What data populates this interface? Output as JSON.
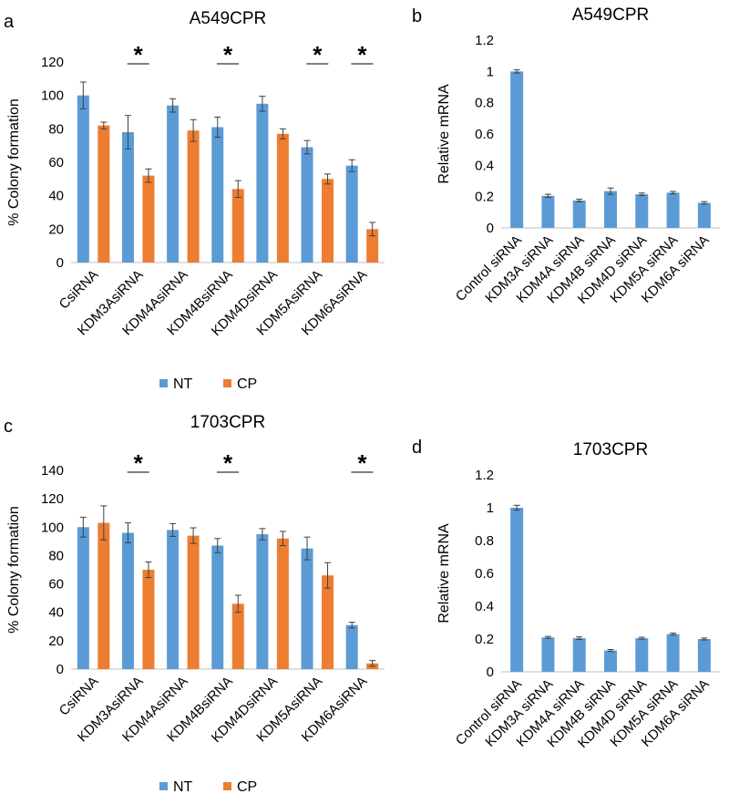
{
  "colors": {
    "nt": "#5B9BD5",
    "cp": "#ED7D31",
    "axis": "#bfbfbf",
    "err": "#404040"
  },
  "significance_marker": "*",
  "chart_data": [
    {
      "panel": "a",
      "type": "bar",
      "title": "A549CPR",
      "ylabel": "% Colony formation",
      "xlabel": "",
      "ylim": [
        0,
        120
      ],
      "ytick_step": 20,
      "legend_position": "bottom",
      "categories": [
        "CsiRNA",
        "KDM3AsiRNA",
        "KDM4AsiRNA",
        "KDM4BsiRNA",
        "KDM4DsiRNA",
        "KDM5AsiRNA",
        "KDM6AsiRNA"
      ],
      "series": [
        {
          "name": "NT",
          "color": "#5B9BD5",
          "values": [
            100,
            78,
            94,
            81,
            95,
            69,
            58
          ],
          "errors": [
            8,
            10,
            4,
            6,
            4.5,
            4,
            3.5
          ]
        },
        {
          "name": "CP",
          "color": "#ED7D31",
          "values": [
            82,
            52,
            79,
            44,
            77,
            50,
            20
          ],
          "errors": [
            2,
            4,
            6.5,
            5,
            3,
            3,
            4
          ]
        }
      ],
      "significant": [
        false,
        true,
        false,
        true,
        false,
        true,
        true
      ]
    },
    {
      "panel": "b",
      "type": "bar",
      "title": "A549CPR",
      "ylabel": "Relative mRNA",
      "xlabel": "",
      "ylim": [
        0,
        1.2
      ],
      "ytick_step": 0.2,
      "categories": [
        "Control siRNA",
        "KDM3A siRNA",
        "KDM4A siRNA",
        "KDM4B siRNA",
        "KDM4D siRNA",
        "KDM5A siRNA",
        "KDM6A siRNA"
      ],
      "series": [
        {
          "name": "Relative mRNA",
          "color": "#5B9BD5",
          "values": [
            1.0,
            0.205,
            0.175,
            0.235,
            0.215,
            0.225,
            0.16
          ],
          "errors": [
            0.01,
            0.01,
            0.008,
            0.02,
            0.008,
            0.008,
            0.008
          ]
        }
      ]
    },
    {
      "panel": "c",
      "type": "bar",
      "title": "1703CPR",
      "ylabel": "% Colony formation",
      "xlabel": "",
      "ylim": [
        0,
        140
      ],
      "ytick_step": 20,
      "legend_position": "bottom",
      "categories": [
        "CsiRNA",
        "KDM3AsiRNA",
        "KDM4AsiRNA",
        "KDM4BsiRNA",
        "KDM4DsiRNA",
        "KDM5AsiRNA",
        "KDM6AsiRNA"
      ],
      "series": [
        {
          "name": "NT",
          "color": "#5B9BD5",
          "values": [
            100,
            96,
            98,
            87,
            95,
            85,
            31
          ],
          "errors": [
            7,
            7,
            4.5,
            5,
            4,
            8,
            2
          ]
        },
        {
          "name": "CP",
          "color": "#ED7D31",
          "values": [
            103,
            70,
            94,
            46,
            92,
            66,
            4
          ],
          "errors": [
            12,
            5.5,
            5.5,
            6,
            5,
            9,
            2
          ]
        }
      ],
      "significant": [
        false,
        true,
        false,
        true,
        false,
        false,
        true
      ]
    },
    {
      "panel": "d",
      "type": "bar",
      "title": "1703CPR",
      "ylabel": "Relative mRNA",
      "xlabel": "",
      "ylim": [
        0,
        1.2
      ],
      "ytick_step": 0.2,
      "categories": [
        "Control siRNA",
        "KDM3A siRNA",
        "KDM4A siRNA",
        "KDM4B siRNA",
        "KDM4D siRNA",
        "KDM5A siRNA",
        "KDM6A siRNA"
      ],
      "series": [
        {
          "name": "Relative mRNA",
          "color": "#5B9BD5",
          "values": [
            1.0,
            0.21,
            0.205,
            0.13,
            0.205,
            0.23,
            0.2
          ],
          "errors": [
            0.015,
            0.006,
            0.008,
            0.006,
            0.006,
            0.006,
            0.006
          ]
        }
      ]
    }
  ]
}
